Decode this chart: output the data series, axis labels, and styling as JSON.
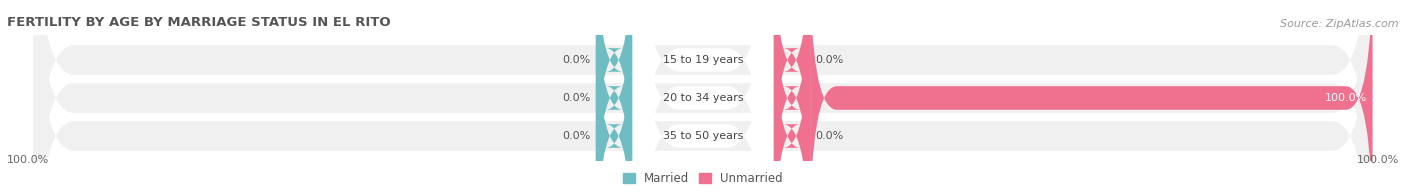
{
  "title": "FERTILITY BY AGE BY MARRIAGE STATUS IN EL RITO",
  "source": "Source: ZipAtlas.com",
  "categories": [
    "15 to 19 years",
    "20 to 34 years",
    "35 to 50 years"
  ],
  "married_values": [
    0.0,
    0.0,
    0.0
  ],
  "unmarried_values": [
    0.0,
    100.0,
    0.0
  ],
  "married_color": "#6dbdc3",
  "unmarried_color": "#f07090",
  "bar_bg_color": "#e8e8e8",
  "row_bg_color": "#f0f0f0",
  "title_fontsize": 9.5,
  "source_fontsize": 8,
  "label_fontsize": 8,
  "category_fontsize": 8,
  "legend_married": "Married",
  "legend_unmarried": "Unmarried"
}
